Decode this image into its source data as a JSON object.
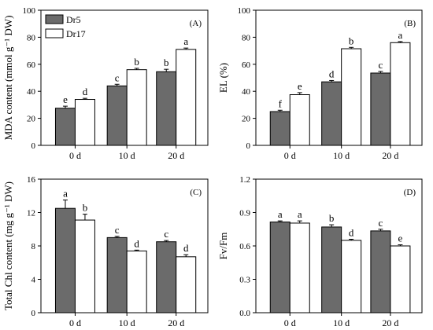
{
  "colors": {
    "dr5": "#6b6b6b",
    "dr17": "#ffffff",
    "stroke": "#000000"
  },
  "chart_data": [
    {
      "type": "bar",
      "panel_label": "(A)",
      "ylabel": "MDA content (mmol g⁻¹ DW)",
      "ylim": [
        0,
        100
      ],
      "yticks": [
        "0",
        "20",
        "40",
        "60",
        "80",
        "100"
      ],
      "categories": [
        "0 d",
        "10 d",
        "20 d"
      ],
      "legend": [
        "Dr5",
        "Dr17"
      ],
      "legend_position": "top-left",
      "series": [
        {
          "name": "Dr5",
          "values": [
            27.5,
            44,
            54.5
          ],
          "errors": [
            1.5,
            1.2,
            1.8
          ],
          "letters": [
            "e",
            "c",
            "b"
          ]
        },
        {
          "name": "Dr17",
          "values": [
            34,
            56,
            71
          ],
          "errors": [
            0.8,
            1.0,
            1.0
          ],
          "letters": [
            "d",
            "b",
            "a"
          ]
        }
      ]
    },
    {
      "type": "bar",
      "panel_label": "(B)",
      "ylabel": "EL (%)",
      "ylim": [
        0,
        100
      ],
      "yticks": [
        "0",
        "20",
        "40",
        "60",
        "80",
        "100"
      ],
      "categories": [
        "0 d",
        "10 d",
        "20 d"
      ],
      "series": [
        {
          "name": "Dr5",
          "values": [
            25,
            47,
            53.5
          ],
          "errors": [
            1.0,
            1.0,
            1.2
          ],
          "letters": [
            "f",
            "d",
            "c"
          ]
        },
        {
          "name": "Dr17",
          "values": [
            37.5,
            71.5,
            76
          ],
          "errors": [
            1.5,
            1.0,
            0.8
          ],
          "letters": [
            "e",
            "b",
            "a"
          ]
        }
      ]
    },
    {
      "type": "bar",
      "panel_label": "(C)",
      "ylabel": "Total Chl content (mg g⁻¹ DW)",
      "ylim": [
        0,
        16
      ],
      "yticks": [
        "0",
        "4",
        "8",
        "12",
        "16"
      ],
      "categories": [
        "0 d",
        "10 d",
        "20 d"
      ],
      "series": [
        {
          "name": "Dr5",
          "values": [
            12.5,
            9.0,
            8.5
          ],
          "errors": [
            1.0,
            0.15,
            0.15
          ],
          "letters": [
            "a",
            "c",
            "c"
          ]
        },
        {
          "name": "Dr17",
          "values": [
            11.1,
            7.4,
            6.7
          ],
          "errors": [
            0.7,
            0.1,
            0.25
          ],
          "letters": [
            "b",
            "d",
            "d"
          ]
        }
      ]
    },
    {
      "type": "bar",
      "panel_label": "(D)",
      "ylabel": "Fv/Fm",
      "ylim": [
        0,
        1.2
      ],
      "yticks": [
        "0.0",
        "0.3",
        "0.6",
        "0.9",
        "1.2"
      ],
      "categories": [
        "0 d",
        "10 d",
        "20 d"
      ],
      "series": [
        {
          "name": "Dr5",
          "values": [
            0.815,
            0.77,
            0.735
          ],
          "errors": [
            0.01,
            0.02,
            0.015
          ],
          "letters": [
            "a",
            "b",
            "c"
          ]
        },
        {
          "name": "Dr17",
          "values": [
            0.805,
            0.65,
            0.6
          ],
          "errors": [
            0.02,
            0.01,
            0.01
          ],
          "letters": [
            "a",
            "d",
            "e"
          ]
        }
      ]
    }
  ]
}
